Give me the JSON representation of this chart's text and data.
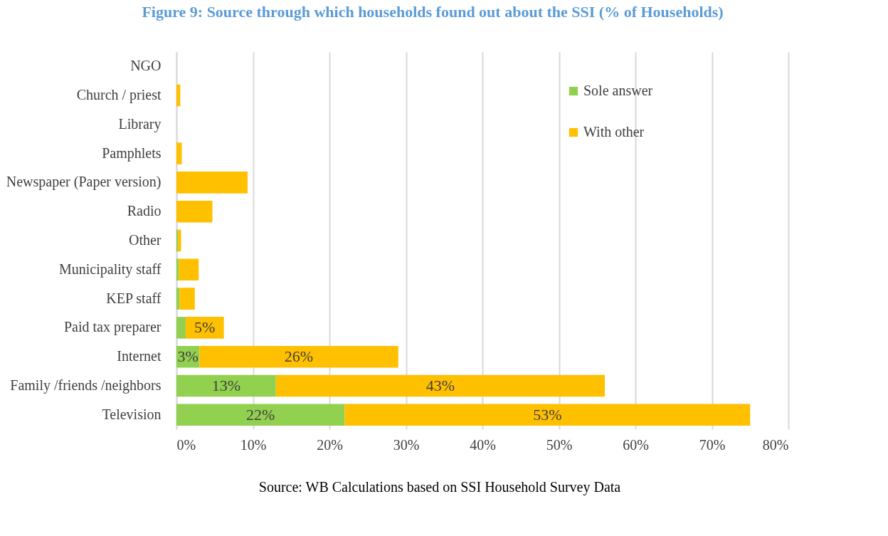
{
  "chart_data": {
    "type": "bar",
    "orientation": "horizontal",
    "stacked": true,
    "title": "Figure 9: Source through which households found out about the SSI (% of Households)",
    "categories": [
      "NGO",
      "Church / priest",
      "Library",
      "Pamphlets",
      "Newspaper (Paper version)",
      "Radio",
      "Other",
      "Municipality staff",
      "KEP staff",
      "Paid tax preparer",
      "Internet",
      "Family /friends /neighbors",
      "Television"
    ],
    "series": [
      {
        "name": "Sole answer",
        "color": "#92d050",
        "values": [
          0,
          0,
          0,
          0,
          0,
          0,
          0.2,
          0.3,
          0.4,
          1.2,
          3,
          13,
          22
        ],
        "value_labels": [
          null,
          null,
          null,
          null,
          null,
          null,
          null,
          null,
          null,
          null,
          "3%",
          "13%",
          "22%"
        ]
      },
      {
        "name": "With other",
        "color": "#ffc000",
        "values": [
          0,
          0.5,
          0,
          0.7,
          9.3,
          4.7,
          0.4,
          2.6,
          2.0,
          5,
          26,
          43,
          53
        ],
        "value_labels": [
          null,
          null,
          null,
          null,
          null,
          null,
          null,
          null,
          null,
          "5%",
          "26%",
          "43%",
          "53%"
        ]
      }
    ],
    "xlim": [
      0,
      80
    ],
    "xticks": [
      {
        "value": 0,
        "label": "0%"
      },
      {
        "value": 10,
        "label": "10%"
      },
      {
        "value": 20,
        "label": "20%"
      },
      {
        "value": 30,
        "label": "30%"
      },
      {
        "value": 40,
        "label": "40%"
      },
      {
        "value": 50,
        "label": "50%"
      },
      {
        "value": 60,
        "label": "60%"
      },
      {
        "value": 70,
        "label": "70%"
      },
      {
        "value": 80,
        "label": "80%"
      }
    ],
    "grid": "x",
    "legend": "top right",
    "annotations": [
      "Source: WB Calculations based on SSI Household Survey Data"
    ]
  }
}
